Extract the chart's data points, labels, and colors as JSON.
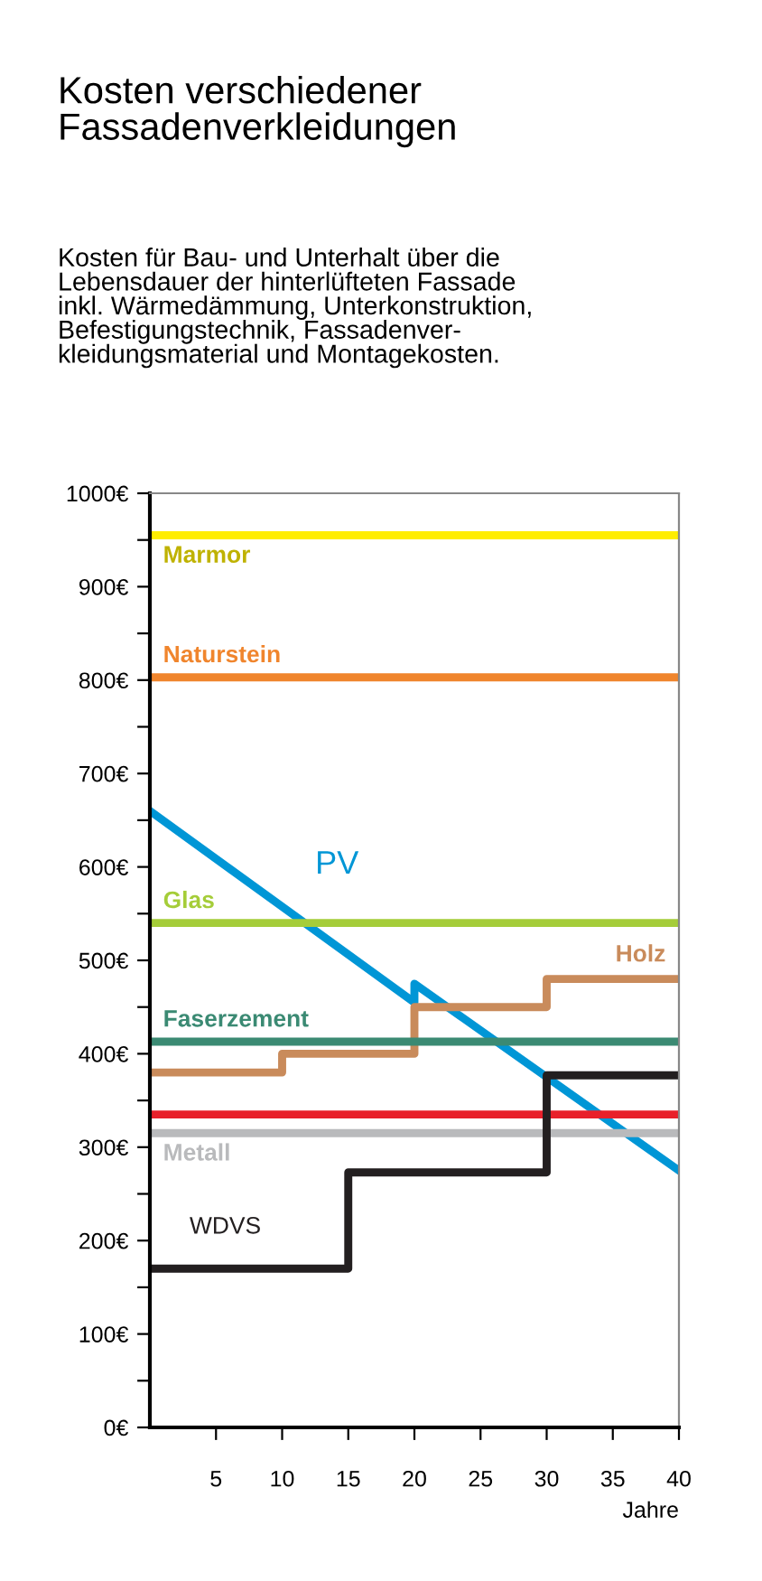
{
  "chart_data": {
    "type": "step",
    "title": "Kosten verschiedener\nFassadenverkleidungen",
    "subtitle": "Kosten für Bau- und Unterhalt über die\nLebensdauer der hinterlüfteten Fassade\ninkl. Wärmedämmung, Unterkonstruktion,\nBefestigungstechnik, Fassadenver-\nkleidungsmaterial und Montagekosten.",
    "xlabel": "Jahre",
    "x": [
      0,
      40
    ],
    "series": [
      {
        "name": "Marmor",
        "color": "#ffed00",
        "values": [
          955,
          955
        ]
      },
      {
        "name": "Naturstein",
        "color": "#f0852d",
        "values": [
          803,
          803
        ]
      },
      {
        "name": "PV",
        "type": "line",
        "color": "#0096d6",
        "x": [
          0,
          20,
          20,
          40
        ],
        "values": [
          660,
          455,
          475,
          275
        ]
      },
      {
        "name": "Glas",
        "color": "#a5cd39",
        "values": [
          540,
          540
        ]
      },
      {
        "name": "Holz",
        "color": "#c98b5b",
        "x": [
          0,
          10,
          20,
          30,
          40
        ],
        "values": [
          380,
          400,
          450,
          480,
          480
        ]
      },
      {
        "name": "Faserzement",
        "color": "#3b8a73",
        "values": [
          413,
          413
        ]
      },
      {
        "color": "#e8202a",
        "values": [
          335,
          335
        ]
      },
      {
        "name": "Metall",
        "color": "#b9babc",
        "values": [
          315,
          315
        ]
      },
      {
        "name": "WDVS",
        "color": "#231f20",
        "x": [
          0,
          15,
          30,
          40
        ],
        "values": [
          170,
          273,
          377,
          377
        ]
      }
    ],
    "xlim": [
      0,
      40
    ],
    "xticks": [
      5,
      10,
      15,
      20,
      25,
      30,
      35,
      40
    ],
    "ylim": [
      0,
      1000
    ],
    "yticks": [
      {
        "value": 0,
        "label": "0€"
      },
      {
        "value": 50,
        "label": null
      },
      {
        "value": 100,
        "label": "100€"
      },
      {
        "value": 150,
        "label": null
      },
      {
        "value": 200,
        "label": "200€"
      },
      {
        "value": 250,
        "label": null
      },
      {
        "value": 300,
        "label": "300€"
      },
      {
        "value": 350,
        "label": null
      },
      {
        "value": 400,
        "label": "400€"
      },
      {
        "value": 450,
        "label": null
      },
      {
        "value": 500,
        "label": "500€"
      },
      {
        "value": 550,
        "label": null
      },
      {
        "value": 600,
        "label": "600€"
      },
      {
        "value": 650,
        "label": null
      },
      {
        "value": 700,
        "label": "700€"
      },
      {
        "value": 750,
        "label": null
      },
      {
        "value": 800,
        "label": "800€"
      },
      {
        "value": 850,
        "label": null
      },
      {
        "value": 900,
        "label": "900€"
      },
      {
        "value": 950,
        "label": null
      },
      {
        "value": 1000,
        "label": "1000€"
      }
    ],
    "grid": false,
    "legend": false
  }
}
